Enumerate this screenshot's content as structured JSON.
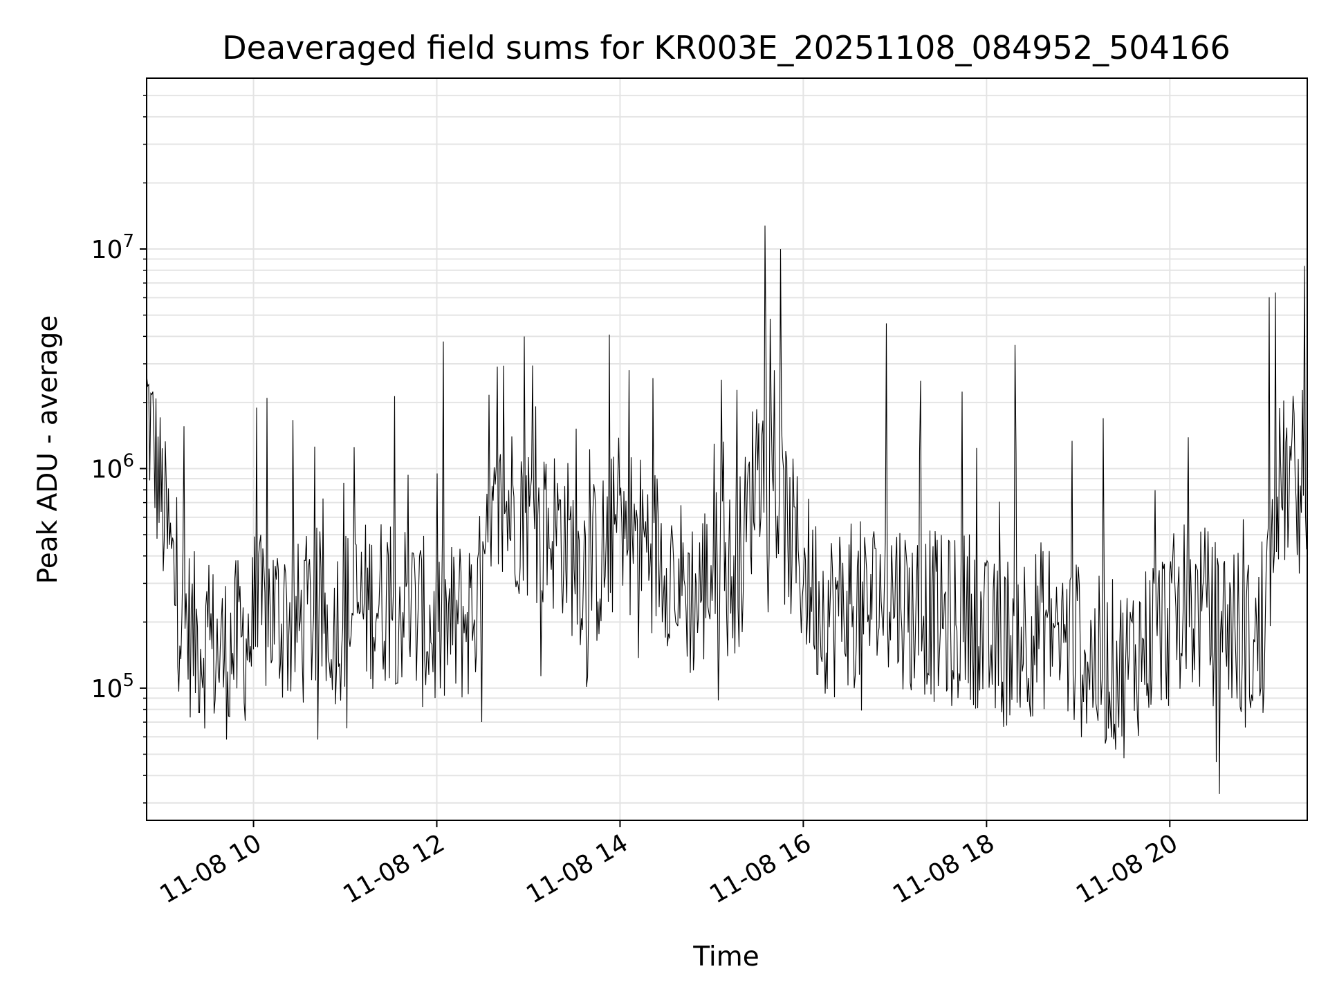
{
  "chart_data": {
    "type": "line",
    "title": "Deaveraged field sums for KR003E_20251108_084952_504166",
    "xlabel": "Time",
    "ylabel": "Peak ADU - average",
    "x_range": [
      "2025-11-08T08:50",
      "2025-11-08T21:30"
    ],
    "x_ticks": [
      {
        "value": "2025-11-08T10:00",
        "label": "11-08 10"
      },
      {
        "value": "2025-11-08T12:00",
        "label": "11-08 12"
      },
      {
        "value": "2025-11-08T14:00",
        "label": "11-08 14"
      },
      {
        "value": "2025-11-08T16:00",
        "label": "11-08 16"
      },
      {
        "value": "2025-11-08T18:00",
        "label": "11-08 18"
      },
      {
        "value": "2025-11-08T20:00",
        "label": "11-08 20"
      }
    ],
    "y_scale": "log",
    "y_range": [
      25000,
      60000000
    ],
    "y_ticks": [
      {
        "value": 100000,
        "base": "10",
        "exp": "5"
      },
      {
        "value": 1000000,
        "base": "10",
        "exp": "6"
      },
      {
        "value": 10000000,
        "base": "10",
        "exp": "7"
      }
    ],
    "grid": true,
    "line_color": "#000000",
    "series": [
      {
        "x": [
          "08:50",
          "09:00",
          "09:10",
          "09:20",
          "09:30",
          "09:40",
          "09:50",
          "10:00",
          "10:10",
          "10:20",
          "10:30",
          "10:40",
          "10:50",
          "11:00",
          "11:10",
          "11:20",
          "11:30",
          "11:40",
          "11:50",
          "12:00",
          "12:10",
          "12:20",
          "12:30",
          "12:40",
          "12:50",
          "13:00",
          "13:10",
          "13:20",
          "13:30",
          "13:40",
          "13:50",
          "14:00",
          "14:10",
          "14:20",
          "14:30",
          "14:40",
          "14:50",
          "15:00",
          "15:10",
          "15:20",
          "15:30",
          "15:40",
          "15:50",
          "16:00",
          "16:10",
          "16:20",
          "16:30",
          "16:40",
          "16:50",
          "17:00",
          "17:10",
          "17:20",
          "17:30",
          "17:40",
          "17:50",
          "18:00",
          "18:10",
          "18:20",
          "18:30",
          "18:40",
          "18:50",
          "19:00",
          "19:10",
          "19:20",
          "19:30",
          "19:40",
          "19:50",
          "20:00",
          "20:10",
          "20:20",
          "20:30",
          "20:40",
          "20:50",
          "21:00",
          "21:10",
          "21:20",
          "21:30"
        ],
        "y": [
          2000000,
          700000,
          250000,
          170000,
          160000,
          140000,
          160000,
          180000,
          230000,
          200000,
          190000,
          220000,
          200000,
          220000,
          230000,
          250000,
          260000,
          240000,
          200000,
          180000,
          190000,
          210000,
          270000,
          600000,
          700000,
          600000,
          500000,
          550000,
          400000,
          350000,
          400000,
          600000,
          500000,
          450000,
          400000,
          300000,
          250000,
          350000,
          320000,
          400000,
          1200000,
          900000,
          500000,
          350000,
          250000,
          220000,
          250000,
          230000,
          260000,
          280000,
          220000,
          230000,
          200000,
          200000,
          220000,
          160000,
          150000,
          200000,
          180000,
          200000,
          170000,
          150000,
          130000,
          130000,
          120000,
          150000,
          180000,
          200000,
          220000,
          230000,
          200000,
          200000,
          160000,
          150000,
          800000,
          900000,
          1000000
        ]
      }
    ]
  }
}
